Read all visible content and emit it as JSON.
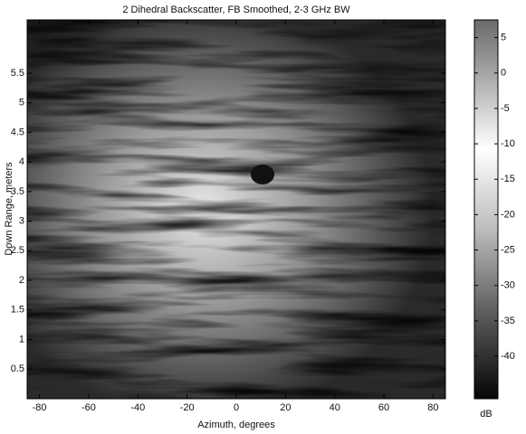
{
  "chart_data": {
    "type": "heatmap",
    "title": "2 Dihedral Backscatter, FB Smoothed, 2-3 GHz BW",
    "xlabel": "Azimuth, degrees",
    "ylabel": "Down Range, meters",
    "xlim": [
      -85,
      85
    ],
    "xticks": [
      -80,
      -60,
      -40,
      -20,
      0,
      20,
      40,
      60,
      80
    ],
    "ylim": [
      0,
      6.4
    ],
    "yticks": [
      0.5,
      1,
      1.5,
      2,
      2.5,
      3,
      3.5,
      4,
      4.5,
      5,
      5.5
    ],
    "colorbar": {
      "label": "dB",
      "zlim": [
        -46,
        7.5
      ],
      "ticks": [
        5,
        0,
        -5,
        -10,
        -15,
        -20,
        -25,
        -30,
        -35,
        -40
      ]
    }
  }
}
